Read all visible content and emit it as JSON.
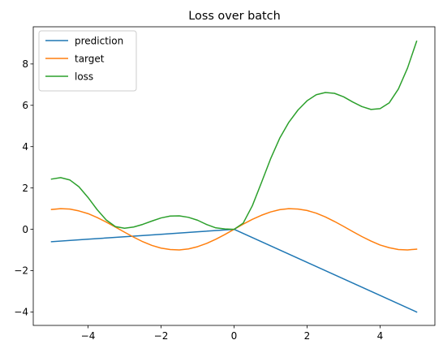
{
  "chart_data": {
    "type": "line",
    "title": "Loss over batch",
    "xlabel": "",
    "ylabel": "",
    "xlim": [
      -5.5,
      5.5
    ],
    "ylim": [
      -4.65,
      9.8
    ],
    "xticks": [
      -4,
      -2,
      0,
      2,
      4
    ],
    "yticks": [
      -4,
      -2,
      0,
      2,
      4,
      6,
      8
    ],
    "xtick_labels": [
      "−4",
      "−2",
      "0",
      "2",
      "4"
    ],
    "ytick_labels": [
      "−4",
      "−2",
      "0",
      "2",
      "4",
      "6",
      "8"
    ],
    "grid": false,
    "legend_position": "upper-left",
    "series": [
      {
        "name": "prediction",
        "color": "#1f77b4",
        "x": [
          -5.0,
          -4.0,
          -3.0,
          -2.0,
          -1.0,
          0.0,
          1.0,
          2.0,
          3.0,
          4.0,
          5.0
        ],
        "y": [
          -0.6,
          -0.48,
          -0.36,
          -0.24,
          -0.12,
          0.0,
          -0.8,
          -1.6,
          -2.4,
          -3.2,
          -4.0
        ]
      },
      {
        "name": "target",
        "color": "#ff7f0e",
        "x": [
          -5.0,
          -4.75,
          -4.5,
          -4.25,
          -4.0,
          -3.75,
          -3.5,
          -3.25,
          -3.0,
          -2.75,
          -2.5,
          -2.25,
          -2.0,
          -1.75,
          -1.5,
          -1.25,
          -1.0,
          -0.75,
          -0.5,
          -0.25,
          0.0,
          0.25,
          0.5,
          0.75,
          1.0,
          1.25,
          1.5,
          1.75,
          2.0,
          2.25,
          2.5,
          2.75,
          3.0,
          3.25,
          3.5,
          3.75,
          4.0,
          4.25,
          4.5,
          4.75,
          5.0
        ],
        "y": [
          0.96,
          1.0,
          0.98,
          0.89,
          0.76,
          0.57,
          0.35,
          0.11,
          -0.14,
          -0.38,
          -0.6,
          -0.78,
          -0.91,
          -0.98,
          -1.0,
          -0.95,
          -0.84,
          -0.68,
          -0.48,
          -0.25,
          0.0,
          0.25,
          0.48,
          0.68,
          0.84,
          0.95,
          1.0,
          0.98,
          0.91,
          0.78,
          0.6,
          0.38,
          0.14,
          -0.11,
          -0.35,
          -0.57,
          -0.76,
          -0.89,
          -0.98,
          -1.0,
          -0.96
        ]
      },
      {
        "name": "loss",
        "color": "#2ca02c",
        "x": [
          -5.0,
          -4.75,
          -4.5,
          -4.25,
          -4.0,
          -3.75,
          -3.5,
          -3.25,
          -3.0,
          -2.75,
          -2.5,
          -2.25,
          -2.0,
          -1.75,
          -1.5,
          -1.25,
          -1.0,
          -0.75,
          -0.5,
          -0.25,
          0.0,
          0.25,
          0.5,
          0.75,
          1.0,
          1.25,
          1.5,
          1.75,
          2.0,
          2.25,
          2.5,
          2.75,
          3.0,
          3.25,
          3.5,
          3.75,
          4.0,
          4.25,
          4.5,
          4.75,
          5.0
        ],
        "y": [
          2.43,
          2.5,
          2.39,
          2.06,
          1.54,
          0.95,
          0.45,
          0.13,
          0.05,
          0.11,
          0.24,
          0.4,
          0.55,
          0.64,
          0.65,
          0.58,
          0.44,
          0.23,
          0.07,
          0.02,
          0.0,
          0.3,
          1.14,
          2.26,
          3.41,
          4.41,
          5.18,
          5.77,
          6.22,
          6.51,
          6.62,
          6.58,
          6.41,
          6.16,
          5.94,
          5.8,
          5.84,
          6.12,
          6.79,
          7.8,
          9.1
        ]
      }
    ]
  }
}
